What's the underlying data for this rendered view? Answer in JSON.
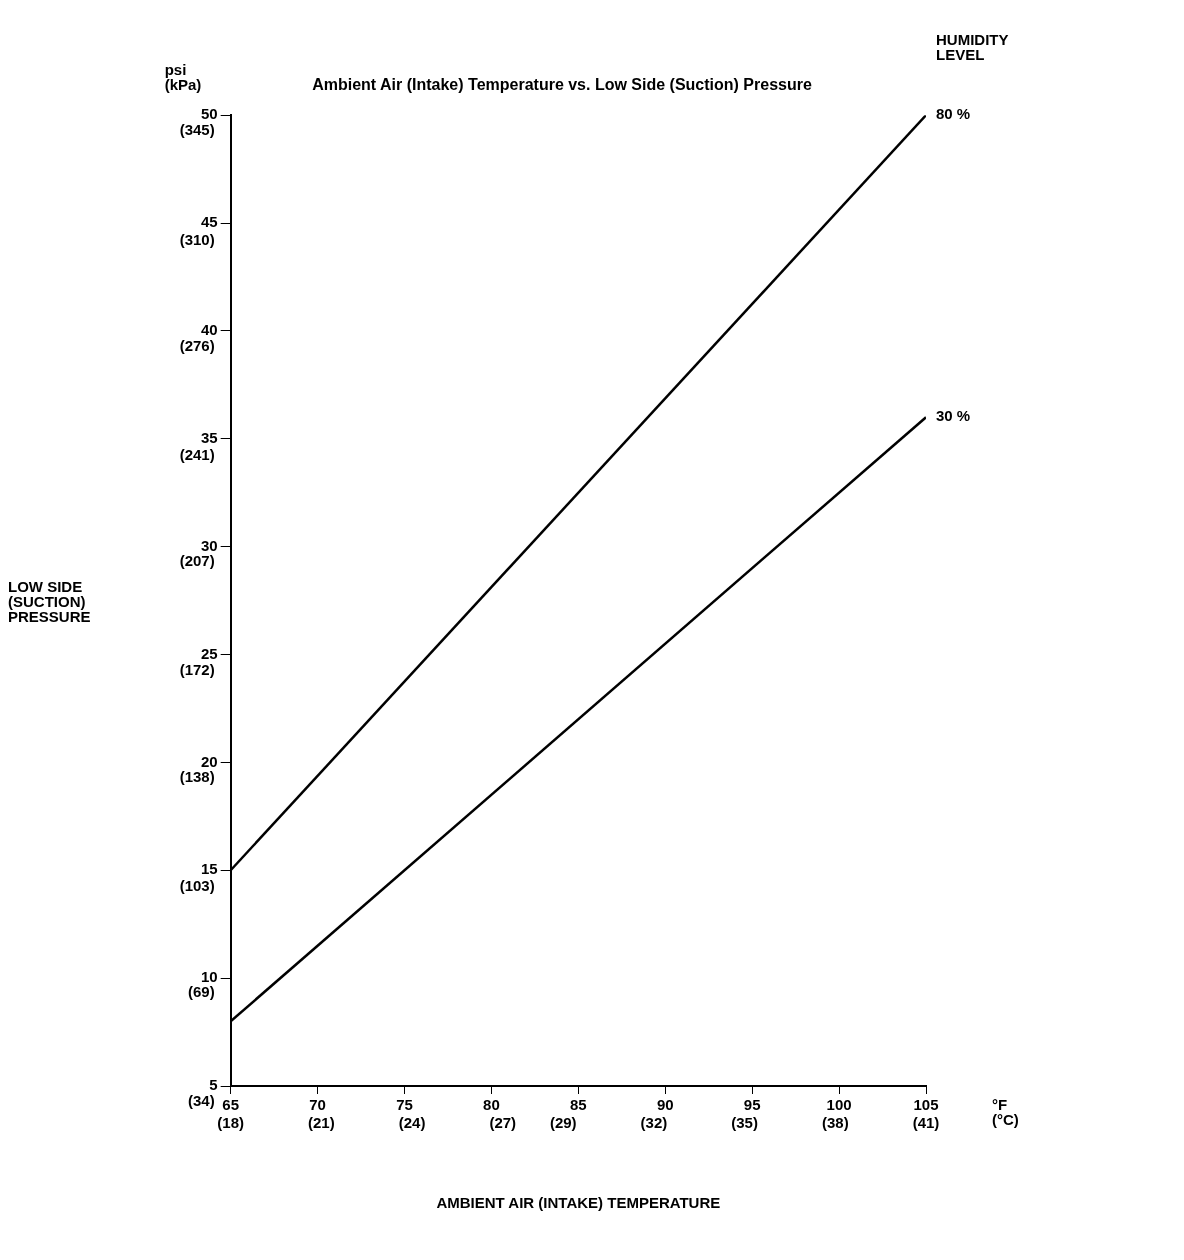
{
  "chart_data": {
    "type": "line",
    "title": "Ambient Air (Intake) Temperature vs. Low Side (Suction) Pressure",
    "xlabel": "AMBIENT AIR (INTAKE) TEMPERATURE",
    "legend_title": "HUMIDITY\nLEVEL",
    "annotations": [
      "psi\n(kPa)",
      "°F\n(°C)",
      "LOW SIDE\n(SUCTION)\nPRESSURE"
    ],
    "x": [
      65,
      105
    ],
    "series": [
      {
        "name": "80 %",
        "color": "#000000",
        "values": [
          15,
          50
        ]
      },
      {
        "name": "30 %",
        "color": "#000000",
        "values": [
          8,
          36
        ]
      }
    ],
    "xlim": [
      65,
      105
    ],
    "xticks": [
      65,
      70,
      75,
      80,
      85,
      90,
      95,
      100,
      105
    ],
    "x2lim": [
      18,
      41
    ],
    "x2ticks": [
      {
        "value": 18,
        "label": "(18)"
      },
      {
        "value": 21,
        "label": "(21)"
      },
      {
        "value": 24,
        "label": "(24)"
      },
      {
        "value": 27,
        "label": "(27)"
      },
      {
        "value": 29,
        "label": "(29)"
      },
      {
        "value": 32,
        "label": "(32)"
      },
      {
        "value": 35,
        "label": "(35)"
      },
      {
        "value": 38,
        "label": "(38)"
      },
      {
        "value": 41,
        "label": "(41)"
      }
    ],
    "ylim": [
      5,
      50
    ],
    "yticks": [
      5,
      10,
      15,
      20,
      25,
      30,
      35,
      40,
      45,
      50
    ],
    "y2lim": [
      34,
      345
    ],
    "y2ticks": [
      {
        "value": 34,
        "label": "(34)"
      },
      {
        "value": 69,
        "label": "(69)"
      },
      {
        "value": 103,
        "label": "(103)"
      },
      {
        "value": 138,
        "label": "(138)"
      },
      {
        "value": 172,
        "label": "(172)"
      },
      {
        "value": 207,
        "label": "(207)"
      },
      {
        "value": 241,
        "label": "(241)"
      },
      {
        "value": 276,
        "label": "(276)"
      },
      {
        "value": 310,
        "label": "(310)"
      },
      {
        "value": 345,
        "label": "(345)"
      }
    ],
    "grid": false,
    "legend": false,
    "marker": "none",
    "line_style": "solid"
  }
}
